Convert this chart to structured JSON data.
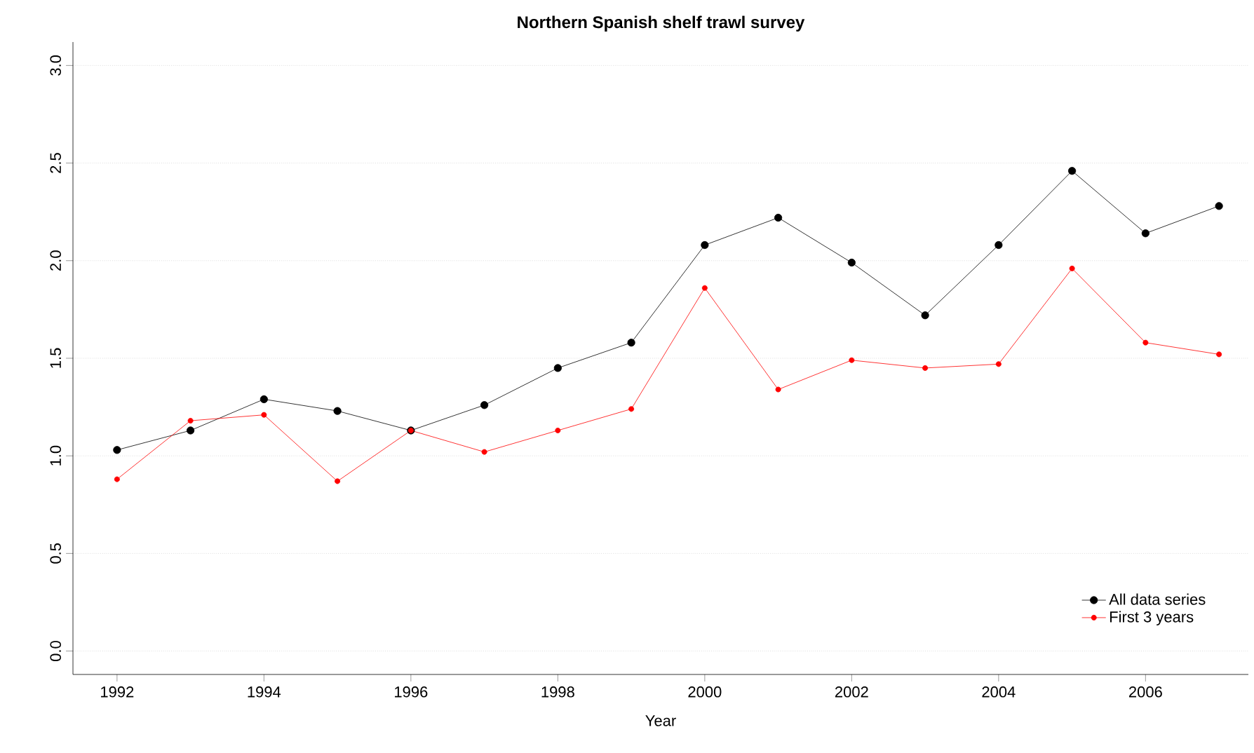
{
  "chart_data": {
    "type": "line",
    "title": "Northern Spanish shelf trawl survey",
    "xlabel": "Year",
    "x": [
      1992,
      1993,
      1994,
      1995,
      1996,
      1997,
      1998,
      1999,
      2000,
      2001,
      2002,
      2003,
      2004,
      2005,
      2006,
      2007
    ],
    "series": [
      {
        "name": "All data series",
        "color": "#000000",
        "values": [
          1.03,
          1.13,
          1.29,
          1.23,
          1.13,
          1.26,
          1.45,
          1.58,
          2.08,
          2.22,
          1.99,
          1.72,
          2.08,
          2.46,
          2.14,
          2.28
        ]
      },
      {
        "name": "First 3 years",
        "color": "#ff0000",
        "values": [
          0.88,
          1.18,
          1.21,
          0.87,
          1.13,
          1.02,
          1.13,
          1.24,
          1.86,
          1.34,
          1.49,
          1.45,
          1.47,
          1.96,
          1.58,
          1.52
        ]
      }
    ],
    "xlim": [
      1991.4,
      2007.4
    ],
    "xticks": [
      1992,
      1994,
      1996,
      1998,
      2000,
      2002,
      2004,
      2006
    ],
    "ylim": [
      -0.12,
      3.12
    ],
    "yticks": [
      {
        "value": 0,
        "label": "0.0"
      },
      {
        "value": 0.5,
        "label": "0.5"
      },
      {
        "value": 1,
        "label": "1.0"
      },
      {
        "value": 1.5,
        "label": "1.5"
      },
      {
        "value": 2,
        "label": "2.0"
      },
      {
        "value": 2.5,
        "label": "2.5"
      },
      {
        "value": 3,
        "label": "3.0"
      }
    ],
    "grid": "y",
    "legend": "bottom right",
    "marker": "circle",
    "line_style": "solid"
  }
}
